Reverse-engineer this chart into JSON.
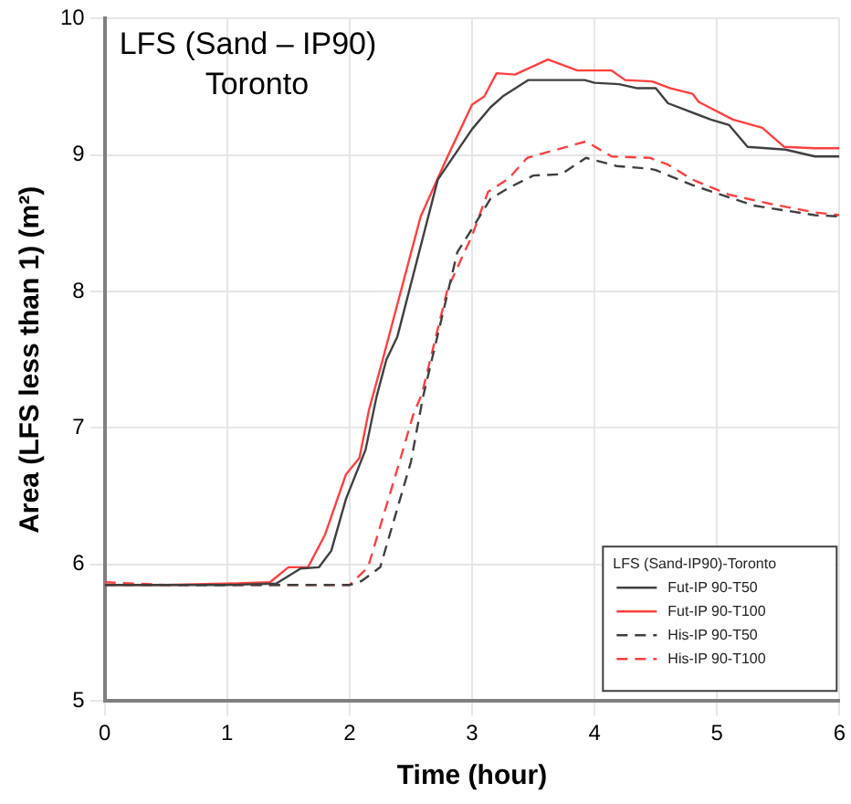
{
  "chart_data": {
    "type": "line",
    "title": "LFS (Sand – IP90)",
    "subtitle": "Toronto",
    "xlabel": "Time (hour)",
    "ylabel": "Area (LFS less than 1) (m²)",
    "legend_title": "LFS (Sand-IP90)-Toronto",
    "xlim": [
      0,
      6
    ],
    "xticks": [
      0,
      1,
      2,
      3,
      4,
      5,
      6
    ],
    "ylim": [
      5,
      10
    ],
    "yticks": [
      5,
      6,
      7,
      8,
      9,
      10
    ],
    "grid": true,
    "legend": "bottom right",
    "marker": "none",
    "series": [
      {
        "name": "Fut-IP 90-T50",
        "color": "#404040",
        "line_style": "solid",
        "x": [
          0,
          0.5,
          1,
          1.4,
          1.6,
          1.75,
          1.85,
          1.97,
          2.13,
          2.22,
          2.3,
          2.39,
          2.72,
          3.0,
          3.15,
          3.25,
          3.46,
          3.92,
          4.0,
          4.2,
          4.35,
          4.5,
          4.6,
          4.95,
          5.1,
          5.25,
          5.56,
          5.8,
          6
        ],
        "values": [
          5.85,
          5.85,
          5.85,
          5.86,
          5.97,
          5.98,
          6.1,
          6.48,
          6.84,
          7.23,
          7.5,
          7.67,
          8.82,
          9.19,
          9.35,
          9.43,
          9.55,
          9.55,
          9.53,
          9.52,
          9.49,
          9.49,
          9.38,
          9.26,
          9.22,
          9.06,
          9.04,
          8.99,
          8.99
        ]
      },
      {
        "name": "Fut-IP 90-T100",
        "color": "#ff4040",
        "line_style": "solid",
        "x": [
          0,
          0.5,
          1,
          1.35,
          1.5,
          1.66,
          1.8,
          1.97,
          2.08,
          2.16,
          2.27,
          2.58,
          2.8,
          3.0,
          3.1,
          3.2,
          3.35,
          3.62,
          3.86,
          4.14,
          4.25,
          4.47,
          4.62,
          4.8,
          4.85,
          5.13,
          5.37,
          5.55,
          5.8,
          6
        ],
        "values": [
          5.85,
          5.85,
          5.86,
          5.87,
          5.98,
          5.98,
          6.22,
          6.66,
          6.78,
          7.14,
          7.5,
          8.55,
          8.99,
          9.37,
          9.43,
          9.6,
          9.59,
          9.7,
          9.62,
          9.62,
          9.55,
          9.54,
          9.49,
          9.45,
          9.39,
          9.26,
          9.2,
          9.06,
          9.05,
          9.05
        ]
      },
      {
        "name": "His-IP 90-T50",
        "color": "#404040",
        "line_style": "dashed",
        "x": [
          0,
          0.5,
          1,
          1.5,
          2.0,
          2.1,
          2.25,
          2.5,
          2.6,
          2.74,
          2.88,
          3.0,
          3.15,
          3.3,
          3.5,
          3.73,
          3.93,
          4.18,
          4.45,
          4.5,
          4.8,
          5.1,
          5.3,
          5.8,
          6
        ],
        "values": [
          5.85,
          5.85,
          5.85,
          5.85,
          5.85,
          5.88,
          5.98,
          6.75,
          7.23,
          7.76,
          8.29,
          8.46,
          8.68,
          8.76,
          8.85,
          8.86,
          8.98,
          8.92,
          8.9,
          8.89,
          8.78,
          8.69,
          8.63,
          8.56,
          8.55
        ]
      },
      {
        "name": "His-IP 90-T100",
        "color": "#ff4040",
        "line_style": "dashed",
        "x": [
          0,
          0.5,
          1,
          1.5,
          2.0,
          2.15,
          2.4,
          2.52,
          2.59,
          2.8,
          3.0,
          3.13,
          3.3,
          3.45,
          3.73,
          3.93,
          4.14,
          4.45,
          4.6,
          4.8,
          5.1,
          5.45,
          5.8,
          6
        ],
        "values": [
          5.87,
          5.85,
          5.85,
          5.85,
          5.85,
          5.98,
          6.73,
          7.1,
          7.25,
          8.02,
          8.41,
          8.73,
          8.83,
          8.98,
          9.05,
          9.1,
          8.99,
          8.98,
          8.93,
          8.82,
          8.71,
          8.64,
          8.58,
          8.56
        ]
      }
    ]
  }
}
